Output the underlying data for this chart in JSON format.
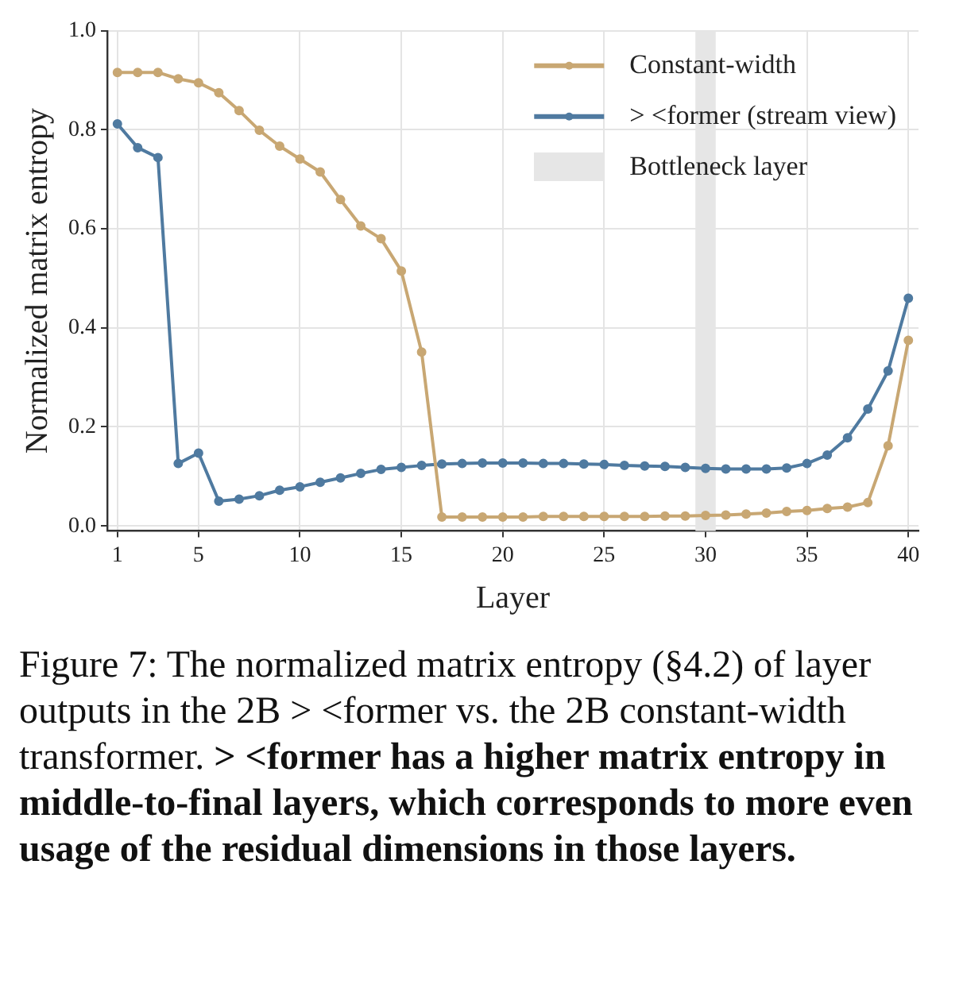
{
  "chart_data": {
    "type": "line",
    "xlabel": "Layer",
    "ylabel": "Normalized matrix entropy",
    "x": [
      1,
      2,
      3,
      4,
      5,
      6,
      7,
      8,
      9,
      10,
      11,
      12,
      13,
      14,
      15,
      16,
      17,
      18,
      19,
      20,
      21,
      22,
      23,
      24,
      25,
      26,
      27,
      28,
      29,
      30,
      31,
      32,
      33,
      34,
      35,
      36,
      37,
      38,
      39,
      40
    ],
    "series": [
      {
        "name": "Constant-width",
        "color": "#c8a773",
        "values": [
          0.916,
          0.916,
          0.916,
          0.903,
          0.895,
          0.875,
          0.839,
          0.799,
          0.767,
          0.741,
          0.715,
          0.659,
          0.606,
          0.58,
          0.515,
          0.351,
          0.018,
          0.018,
          0.018,
          0.018,
          0.018,
          0.019,
          0.019,
          0.019,
          0.019,
          0.019,
          0.019,
          0.02,
          0.02,
          0.021,
          0.022,
          0.024,
          0.026,
          0.029,
          0.031,
          0.035,
          0.038,
          0.047,
          0.162,
          0.375
        ]
      },
      {
        "name": "> <former (stream view)",
        "color": "#4f7aa0",
        "values": [
          0.812,
          0.764,
          0.744,
          0.126,
          0.147,
          0.05,
          0.054,
          0.061,
          0.072,
          0.079,
          0.088,
          0.097,
          0.106,
          0.114,
          0.118,
          0.122,
          0.125,
          0.126,
          0.127,
          0.127,
          0.127,
          0.126,
          0.126,
          0.125,
          0.124,
          0.122,
          0.121,
          0.12,
          0.118,
          0.116,
          0.115,
          0.115,
          0.115,
          0.117,
          0.126,
          0.143,
          0.178,
          0.236,
          0.313,
          0.46
        ]
      }
    ],
    "bands": [
      {
        "axis": "x",
        "from": 29.5,
        "to": 30.5,
        "label": "Bottleneck layer",
        "color": "#e6e6e6"
      }
    ],
    "xlim": [
      0.5,
      40.5
    ],
    "xticks": [
      1,
      5,
      10,
      15,
      20,
      25,
      30,
      35,
      40
    ],
    "ylim": [
      -0.01,
      1.0
    ],
    "yticks": [
      {
        "value": 0,
        "label": "0.0"
      },
      0.2,
      0.4,
      0.6,
      0.8,
      {
        "value": 1,
        "label": "1.0"
      }
    ],
    "grid": true,
    "legend": "top right",
    "marker": "circle",
    "line_style": "solid",
    "annotations": [
      "Figure 7: The normalized matrix entropy (§4.2) of layer outputs in the 2B > <former vs. the 2B constant-width transformer.",
      "> <former has a higher matrix entropy in middle-to-final layers, which corresponds to more even usage of the residual dimensions in those layers."
    ]
  }
}
